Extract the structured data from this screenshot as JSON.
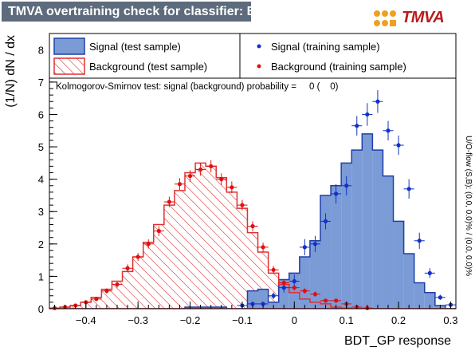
{
  "window": {
    "title": "TMVA overtraining check for classifier: BDT_GP",
    "logo_text": "TMVA"
  },
  "chart_data": {
    "type": "bar",
    "xlabel": "BDT_GP response",
    "ylabel": "(1/N) dN / dx",
    "xlim": [
      -0.47,
      0.31
    ],
    "ylim": [
      0,
      8.5
    ],
    "xticks": [
      -0.4,
      -0.3,
      -0.2,
      -0.1,
      0,
      0.1,
      0.2,
      0.3
    ],
    "xtick_labels": [
      "−0.4",
      "−0.3",
      "−0.2",
      "−0.1",
      "0",
      "0.1",
      "0.2",
      "0.3"
    ],
    "yticks": [
      0,
      1,
      2,
      3,
      4,
      5,
      6,
      7,
      8
    ],
    "ytick_labels": [
      "0",
      "1",
      "2",
      "3",
      "4",
      "5",
      "6",
      "7",
      "8"
    ],
    "bin_edges": [
      -0.47,
      -0.45,
      -0.43,
      -0.41,
      -0.39,
      -0.37,
      -0.35,
      -0.33,
      -0.31,
      -0.29,
      -0.27,
      -0.25,
      -0.23,
      -0.21,
      -0.19,
      -0.17,
      -0.15,
      -0.13,
      -0.11,
      -0.09,
      -0.07,
      -0.05,
      -0.03,
      -0.01,
      0.01,
      0.03,
      0.05,
      0.07,
      0.09,
      0.11,
      0.13,
      0.15,
      0.17,
      0.19,
      0.21,
      0.23,
      0.25,
      0.27,
      0.29,
      0.31
    ],
    "series": [
      {
        "name": "Signal (test sample)",
        "style": "filled",
        "color": "#7b9bd6",
        "edge": "#1f3fa8",
        "values": [
          0,
          0,
          0,
          0,
          0,
          0,
          0,
          0,
          0,
          0,
          0,
          0,
          0,
          0.05,
          0.05,
          0.05,
          0.05,
          0,
          0,
          0.55,
          0.6,
          0.2,
          0.9,
          1.1,
          1.6,
          2.1,
          3.5,
          3.8,
          4.5,
          4.9,
          5.4,
          4.9,
          4.1,
          2.7,
          1.7,
          0.8,
          0.5,
          0.1,
          0
        ],
        "errors": []
      },
      {
        "name": "Background (test sample)",
        "style": "hatched",
        "color": "#e03030",
        "edge": "#e03030",
        "values": [
          0.02,
          0.05,
          0.1,
          0.2,
          0.35,
          0.6,
          0.85,
          1.15,
          1.6,
          2.05,
          2.6,
          3.2,
          3.65,
          4.2,
          4.5,
          4.4,
          4.05,
          3.6,
          3.1,
          2.35,
          1.75,
          1.1,
          0.75,
          0.5,
          0.3,
          0.2,
          0.15,
          0.05,
          0.02,
          0,
          0,
          0,
          0,
          0,
          0,
          0,
          0,
          0,
          0
        ],
        "errors": []
      },
      {
        "name": "Signal (training sample)",
        "style": "points",
        "color": "#1230c8",
        "values": [
          0,
          0,
          0,
          0,
          0,
          0,
          0,
          0,
          0,
          0,
          0,
          0,
          0,
          0,
          0,
          0,
          0,
          0,
          0.1,
          0.15,
          0.15,
          0.4,
          0.65,
          0.85,
          1.9,
          2.0,
          2.7,
          3.55,
          3.8,
          5.65,
          6.0,
          6.4,
          5.5,
          5.05,
          3.7,
          2.1,
          1.1,
          0.35,
          0.12
        ],
        "errors": [
          0,
          0,
          0,
          0,
          0,
          0,
          0,
          0,
          0,
          0,
          0,
          0,
          0,
          0,
          0,
          0,
          0,
          0,
          0.05,
          0.05,
          0.05,
          0.1,
          0.15,
          0.2,
          0.25,
          0.25,
          0.25,
          0.3,
          0.3,
          0.3,
          0.35,
          0.35,
          0.3,
          0.3,
          0.3,
          0.25,
          0.15,
          0.08,
          0.06
        ]
      },
      {
        "name": "Background (training sample)",
        "style": "points",
        "color": "#e01010",
        "values": [
          0.02,
          0.05,
          0.1,
          0.2,
          0.3,
          0.55,
          0.75,
          1.25,
          1.6,
          2.0,
          2.4,
          3.3,
          3.85,
          4.1,
          4.3,
          4.4,
          4.0,
          3.75,
          3.2,
          2.55,
          1.9,
          1.2,
          0.8,
          0.65,
          0.55,
          0.45,
          0.25,
          0.25,
          0.15,
          0.05,
          0.02,
          0,
          0,
          0,
          0,
          0,
          0,
          0,
          0
        ],
        "errors": [
          0.02,
          0.03,
          0.04,
          0.05,
          0.06,
          0.08,
          0.1,
          0.12,
          0.12,
          0.14,
          0.15,
          0.16,
          0.18,
          0.18,
          0.19,
          0.19,
          0.18,
          0.18,
          0.16,
          0.15,
          0.14,
          0.12,
          0.1,
          0.09,
          0.08,
          0.08,
          0.06,
          0.06,
          0.05,
          0.03,
          0.02,
          0,
          0,
          0,
          0,
          0,
          0,
          0,
          0
        ]
      }
    ],
    "ks_text": "Kolmogorov-Smirnov test: signal (background) probability =     0 (    0)",
    "overflow_text": "U/O-flow (S,B): (0.0, 0.0)% / (0.0, 0.0)%",
    "legend_placement": "top"
  }
}
